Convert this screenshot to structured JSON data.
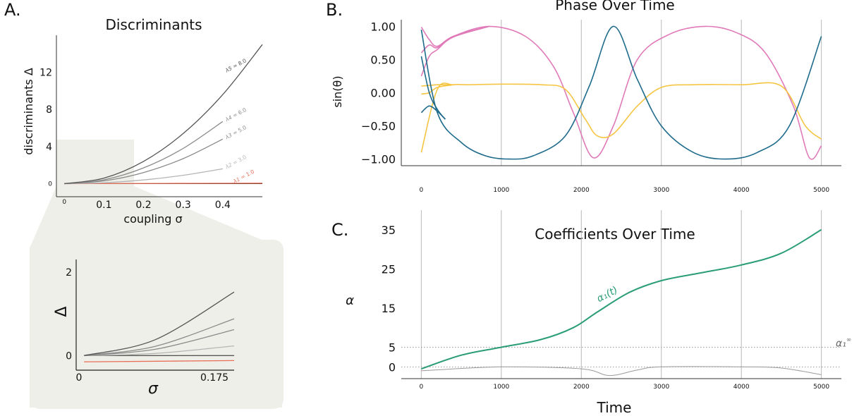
{
  "panels": {
    "a": {
      "letter": "A.",
      "title": "Discriminants",
      "xlabel": "coupling σ",
      "ylabel": "discriminants Δ"
    },
    "a_inset": {
      "xlabel": "σ",
      "ylabel": "Δ"
    },
    "b": {
      "letter": "B.",
      "title": "Phase Over Time",
      "ylabel": "sin(θ)"
    },
    "c": {
      "letter": "C.",
      "title": "Coefficients Over Time",
      "xlabel": "Time",
      "ylabel": "α"
    }
  },
  "colors": {
    "curve_dark": "#555555",
    "curve_mid": "#8a8a8a",
    "curve_light": "#b5b5b5",
    "lambda1": "#e8705a",
    "pink": "#e07ab8",
    "yellow": "#f5c542",
    "teal": "#1f6b8c",
    "green": "#2a9d78",
    "grey": "#9a9a9a",
    "zoom_fill": "#efefe9"
  },
  "chart_data": [
    {
      "type": "line",
      "panel": "A",
      "title": "Discriminants",
      "xlabel": "coupling σ",
      "ylabel": "discriminants Δ",
      "xlim": [
        -0.02,
        0.5
      ],
      "ylim": [
        -0.8,
        16
      ],
      "x_ticks": [
        0,
        0.1,
        0.2,
        0.3,
        0.4
      ],
      "x_tick_labels": [
        "0",
        "0.1",
        "0.2",
        "0.3",
        "0.4"
      ],
      "y_ticks": [
        0,
        4,
        8,
        12
      ],
      "y_tick_labels": [
        "0",
        "4",
        "8",
        "12"
      ],
      "series": [
        {
          "name": "λ₁ = 1.0",
          "label_mark": "λ1",
          "label_value": "= 1.0",
          "kind": "lambda1",
          "x": [
            0,
            0.25,
            0.5
          ],
          "y": [
            0,
            0.025,
            0.05
          ],
          "label_at": [
            0.43,
            0.04
          ]
        },
        {
          "name": "λ₂ = 3.0",
          "label_mark": "λ2",
          "label_value": "= 3.0",
          "kind": "light",
          "x": [
            0,
            0.1,
            0.2,
            0.3,
            0.4
          ],
          "y": [
            0,
            0.1,
            0.4,
            0.9,
            1.6
          ],
          "label_at": [
            0.41,
            1.6
          ]
        },
        {
          "name": "λ₃ = 5.0",
          "label_mark": "λ3",
          "label_value": "= 5.0",
          "kind": "mid",
          "x": [
            0,
            0.1,
            0.2,
            0.3,
            0.4
          ],
          "y": [
            0,
            0.3,
            1.2,
            2.7,
            4.8
          ],
          "label_at": [
            0.41,
            4.8
          ]
        },
        {
          "name": "λ₄ = 6.0",
          "label_mark": "λ4",
          "label_value": "= 6.0",
          "kind": "mid",
          "x": [
            0,
            0.1,
            0.2,
            0.3,
            0.4
          ],
          "y": [
            0,
            0.42,
            1.7,
            3.8,
            6.7
          ],
          "label_at": [
            0.41,
            6.7
          ]
        },
        {
          "name": "λ₅ = 8.0",
          "label_mark": "λ5",
          "label_value": "= 8.0",
          "kind": "dark",
          "x": [
            0,
            0.1,
            0.2,
            0.3,
            0.4,
            0.5
          ],
          "y": [
            0,
            0.6,
            2.4,
            5.4,
            9.6,
            15.0
          ],
          "label_at": [
            0.41,
            12.0
          ]
        }
      ]
    },
    {
      "type": "line",
      "panel": "A-inset",
      "xlabel": "σ",
      "ylabel": "Δ",
      "xlim": [
        0,
        0.2
      ],
      "ylim": [
        -0.35,
        2.3
      ],
      "x_ticks": [
        0,
        0.175
      ],
      "x_tick_labels": [
        "0",
        "0.175"
      ],
      "y_ticks": [
        0,
        2
      ],
      "y_tick_labels": [
        "0",
        "2"
      ],
      "series": [
        {
          "kind": "lambda1",
          "x": [
            0.01,
            0.2
          ],
          "y": [
            -0.15,
            -0.12
          ]
        },
        {
          "kind": "light",
          "x": [
            0.01,
            0.1,
            0.2
          ],
          "y": [
            0,
            0.05,
            0.23
          ]
        },
        {
          "kind": "mid",
          "x": [
            0.01,
            0.1,
            0.2
          ],
          "y": [
            0,
            0.15,
            0.62
          ]
        },
        {
          "kind": "mid",
          "x": [
            0.01,
            0.1,
            0.2
          ],
          "y": [
            0,
            0.22,
            0.88
          ]
        },
        {
          "kind": "dark",
          "x": [
            0.01,
            0.1,
            0.2
          ],
          "y": [
            0,
            0.38,
            1.52
          ]
        }
      ]
    },
    {
      "type": "line",
      "panel": "B",
      "title": "Phase Over Time",
      "ylabel": "sin(θ)",
      "xlim": [
        -250,
        5250
      ],
      "ylim": [
        -1.1,
        1.1
      ],
      "x_ticks": [
        0,
        1000,
        2000,
        3000,
        4000,
        5000
      ],
      "x_tick_labels": [
        "0",
        "1000",
        "2000",
        "3000",
        "4000",
        "5000"
      ],
      "y_ticks": [
        1,
        0.5,
        0,
        -0.5,
        -1
      ],
      "y_tick_labels": [
        "1.00",
        "0.50",
        "0.00",
        "−0.50",
        "−1.00"
      ],
      "grid": "vertical",
      "series": [
        {
          "color_key": "pink",
          "x": [
            0,
            100,
            200,
            400,
            850,
            1300,
            1650,
            1900,
            2150,
            2400,
            2700,
            3100,
            3550,
            3950,
            4300,
            4650,
            4850,
            5000
          ],
          "y": [
            0.99,
            0.8,
            0.7,
            0.85,
            1.0,
            0.85,
            0.4,
            -0.3,
            -0.98,
            -0.5,
            0.5,
            0.88,
            1.0,
            0.9,
            0.6,
            -0.2,
            -0.98,
            -0.8
          ]
        },
        {
          "color_key": "pink",
          "x": [
            0,
            100,
            200,
            400,
            850
          ],
          "y": [
            0.6,
            0.72,
            0.68,
            0.85,
            1.0
          ]
        },
        {
          "color_key": "pink",
          "x": [
            0,
            100,
            200,
            400,
            850
          ],
          "y": [
            0.25,
            0.55,
            0.65,
            0.84,
            1.0
          ]
        },
        {
          "color_key": "yellow",
          "x": [
            0,
            200,
            400,
            600,
            1000,
            1500,
            1800,
            2050,
            2200,
            2400,
            2700,
            3000,
            3400,
            4000,
            4500,
            4800,
            5000
          ],
          "y": [
            -0.9,
            0.05,
            0.12,
            0.12,
            0.13,
            0.12,
            0.05,
            -0.4,
            -0.65,
            -0.62,
            -0.2,
            0.08,
            0.12,
            0.12,
            0.1,
            -0.5,
            -0.7
          ]
        },
        {
          "color_key": "yellow",
          "x": [
            0,
            100,
            200,
            400
          ],
          "y": [
            -0.02,
            0.0,
            0.08,
            0.12
          ]
        },
        {
          "color_key": "yellow",
          "x": [
            0,
            100,
            200,
            400
          ],
          "y": [
            0.1,
            0.11,
            0.12,
            0.12
          ]
        },
        {
          "color_key": "teal",
          "x": [
            0,
            200,
            500,
            800,
            1100,
            1400,
            1800,
            2100,
            2400,
            2700,
            3000,
            3400,
            3800,
            4200,
            4600,
            5000
          ],
          "y": [
            0.95,
            -0.3,
            -0.75,
            -0.95,
            -1.0,
            -0.95,
            -0.65,
            0.1,
            1.0,
            0.2,
            -0.5,
            -0.9,
            -1.0,
            -0.9,
            -0.5,
            0.85
          ]
        },
        {
          "color_key": "teal",
          "x": [
            0,
            100,
            200,
            300
          ],
          "y": [
            -0.3,
            -0.2,
            -0.28,
            -0.4
          ]
        },
        {
          "color_key": "teal",
          "x": [
            0,
            100,
            200,
            300
          ],
          "y": [
            0.55,
            0.0,
            -0.25,
            -0.4
          ]
        }
      ]
    },
    {
      "type": "line",
      "panel": "C",
      "title": "Coefficients Over Time",
      "xlabel": "Time",
      "ylabel": "α",
      "xlim": [
        -250,
        5250
      ],
      "ylim": [
        -3,
        40
      ],
      "x_ticks": [
        0,
        1000,
        2000,
        3000,
        4000,
        5000
      ],
      "x_tick_labels": [
        "0",
        "1000",
        "2000",
        "3000",
        "4000",
        "5000"
      ],
      "y_ticks": [
        35,
        25,
        15,
        5,
        0
      ],
      "y_tick_labels": [
        "35",
        "25",
        "15",
        "5",
        "0"
      ],
      "grid": "vertical",
      "reference_lines": [
        {
          "y": 5,
          "label_mark": "α₁",
          "label_sup": "∞"
        },
        {
          "y": 0
        }
      ],
      "series": [
        {
          "name": "α₁(t)",
          "label_mark": "α₁(t)",
          "color_key": "green",
          "x": [
            0,
            500,
            1000,
            1500,
            1900,
            2200,
            2600,
            3000,
            3500,
            4000,
            4500,
            5000
          ],
          "y": [
            -0.5,
            3,
            5,
            7,
            10,
            14,
            19,
            22,
            24,
            26,
            29,
            35
          ]
        },
        {
          "color_key": "grey",
          "x": [
            0,
            1000,
            2000,
            2350,
            2700,
            3000,
            4000,
            4500,
            5000
          ],
          "y": [
            -1,
            0,
            -0.5,
            -2.2,
            -0.8,
            0,
            0,
            -0.3,
            -2
          ]
        }
      ]
    }
  ]
}
